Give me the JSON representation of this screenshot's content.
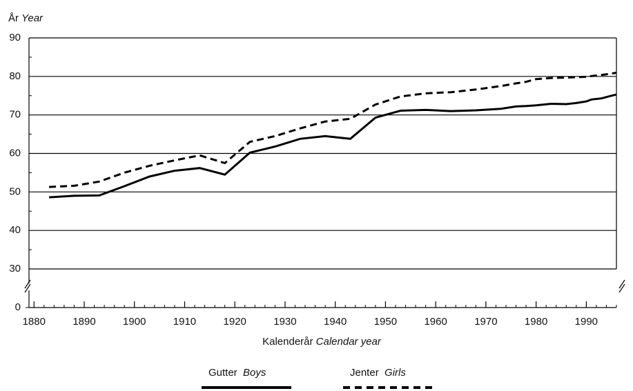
{
  "chart_data": {
    "type": "line",
    "y_label": {
      "local": "År",
      "english": "Year"
    },
    "x_label": {
      "local": "Kalenderår",
      "english": "Calendar year"
    },
    "x": [
      1883,
      1888,
      1893,
      1898,
      1903,
      1908,
      1913,
      1918,
      1923,
      1928,
      1933,
      1938,
      1943,
      1948,
      1953,
      1958,
      1963,
      1968,
      1973,
      1976,
      1978,
      1980,
      1983,
      1986,
      1988,
      1990,
      1991,
      1993,
      1995,
      1996
    ],
    "series": [
      {
        "name": "Gutter",
        "name_english": "Boys",
        "color": "#000000",
        "dash": false,
        "values": [
          48.6,
          49,
          49.1,
          51.5,
          54,
          55.5,
          56.2,
          54.5,
          60.2,
          61.8,
          63.8,
          64.5,
          63.8,
          69.3,
          71.1,
          71.3,
          71,
          71.2,
          71.6,
          72.2,
          72.3,
          72.5,
          72.9,
          72.8,
          73.1,
          73.5,
          74,
          74.3,
          75,
          75.3
        ]
      },
      {
        "name": "Jenter",
        "name_english": "Girls",
        "color": "#000000",
        "dash": true,
        "values": [
          51.3,
          51.6,
          52.7,
          55,
          56.8,
          58.2,
          59.5,
          57.5,
          63,
          64.5,
          66.5,
          68.3,
          69,
          72.7,
          74.8,
          75.6,
          75.9,
          76.6,
          77.5,
          78.2,
          78.6,
          79.3,
          79.6,
          79.7,
          79.8,
          79.9,
          80.1,
          80.4,
          80.7,
          81
        ]
      }
    ],
    "xlim": [
      1879,
      1996
    ],
    "xticks": [
      1880,
      1890,
      1900,
      1910,
      1920,
      1930,
      1940,
      1950,
      1960,
      1970,
      1980,
      1990
    ],
    "xminor_step": 2,
    "ylim": [
      30,
      90
    ],
    "yticks": [
      30,
      40,
      50,
      60,
      70,
      80,
      90
    ],
    "yticks_below_break": [
      0
    ],
    "axis_break": true,
    "grid": true
  }
}
